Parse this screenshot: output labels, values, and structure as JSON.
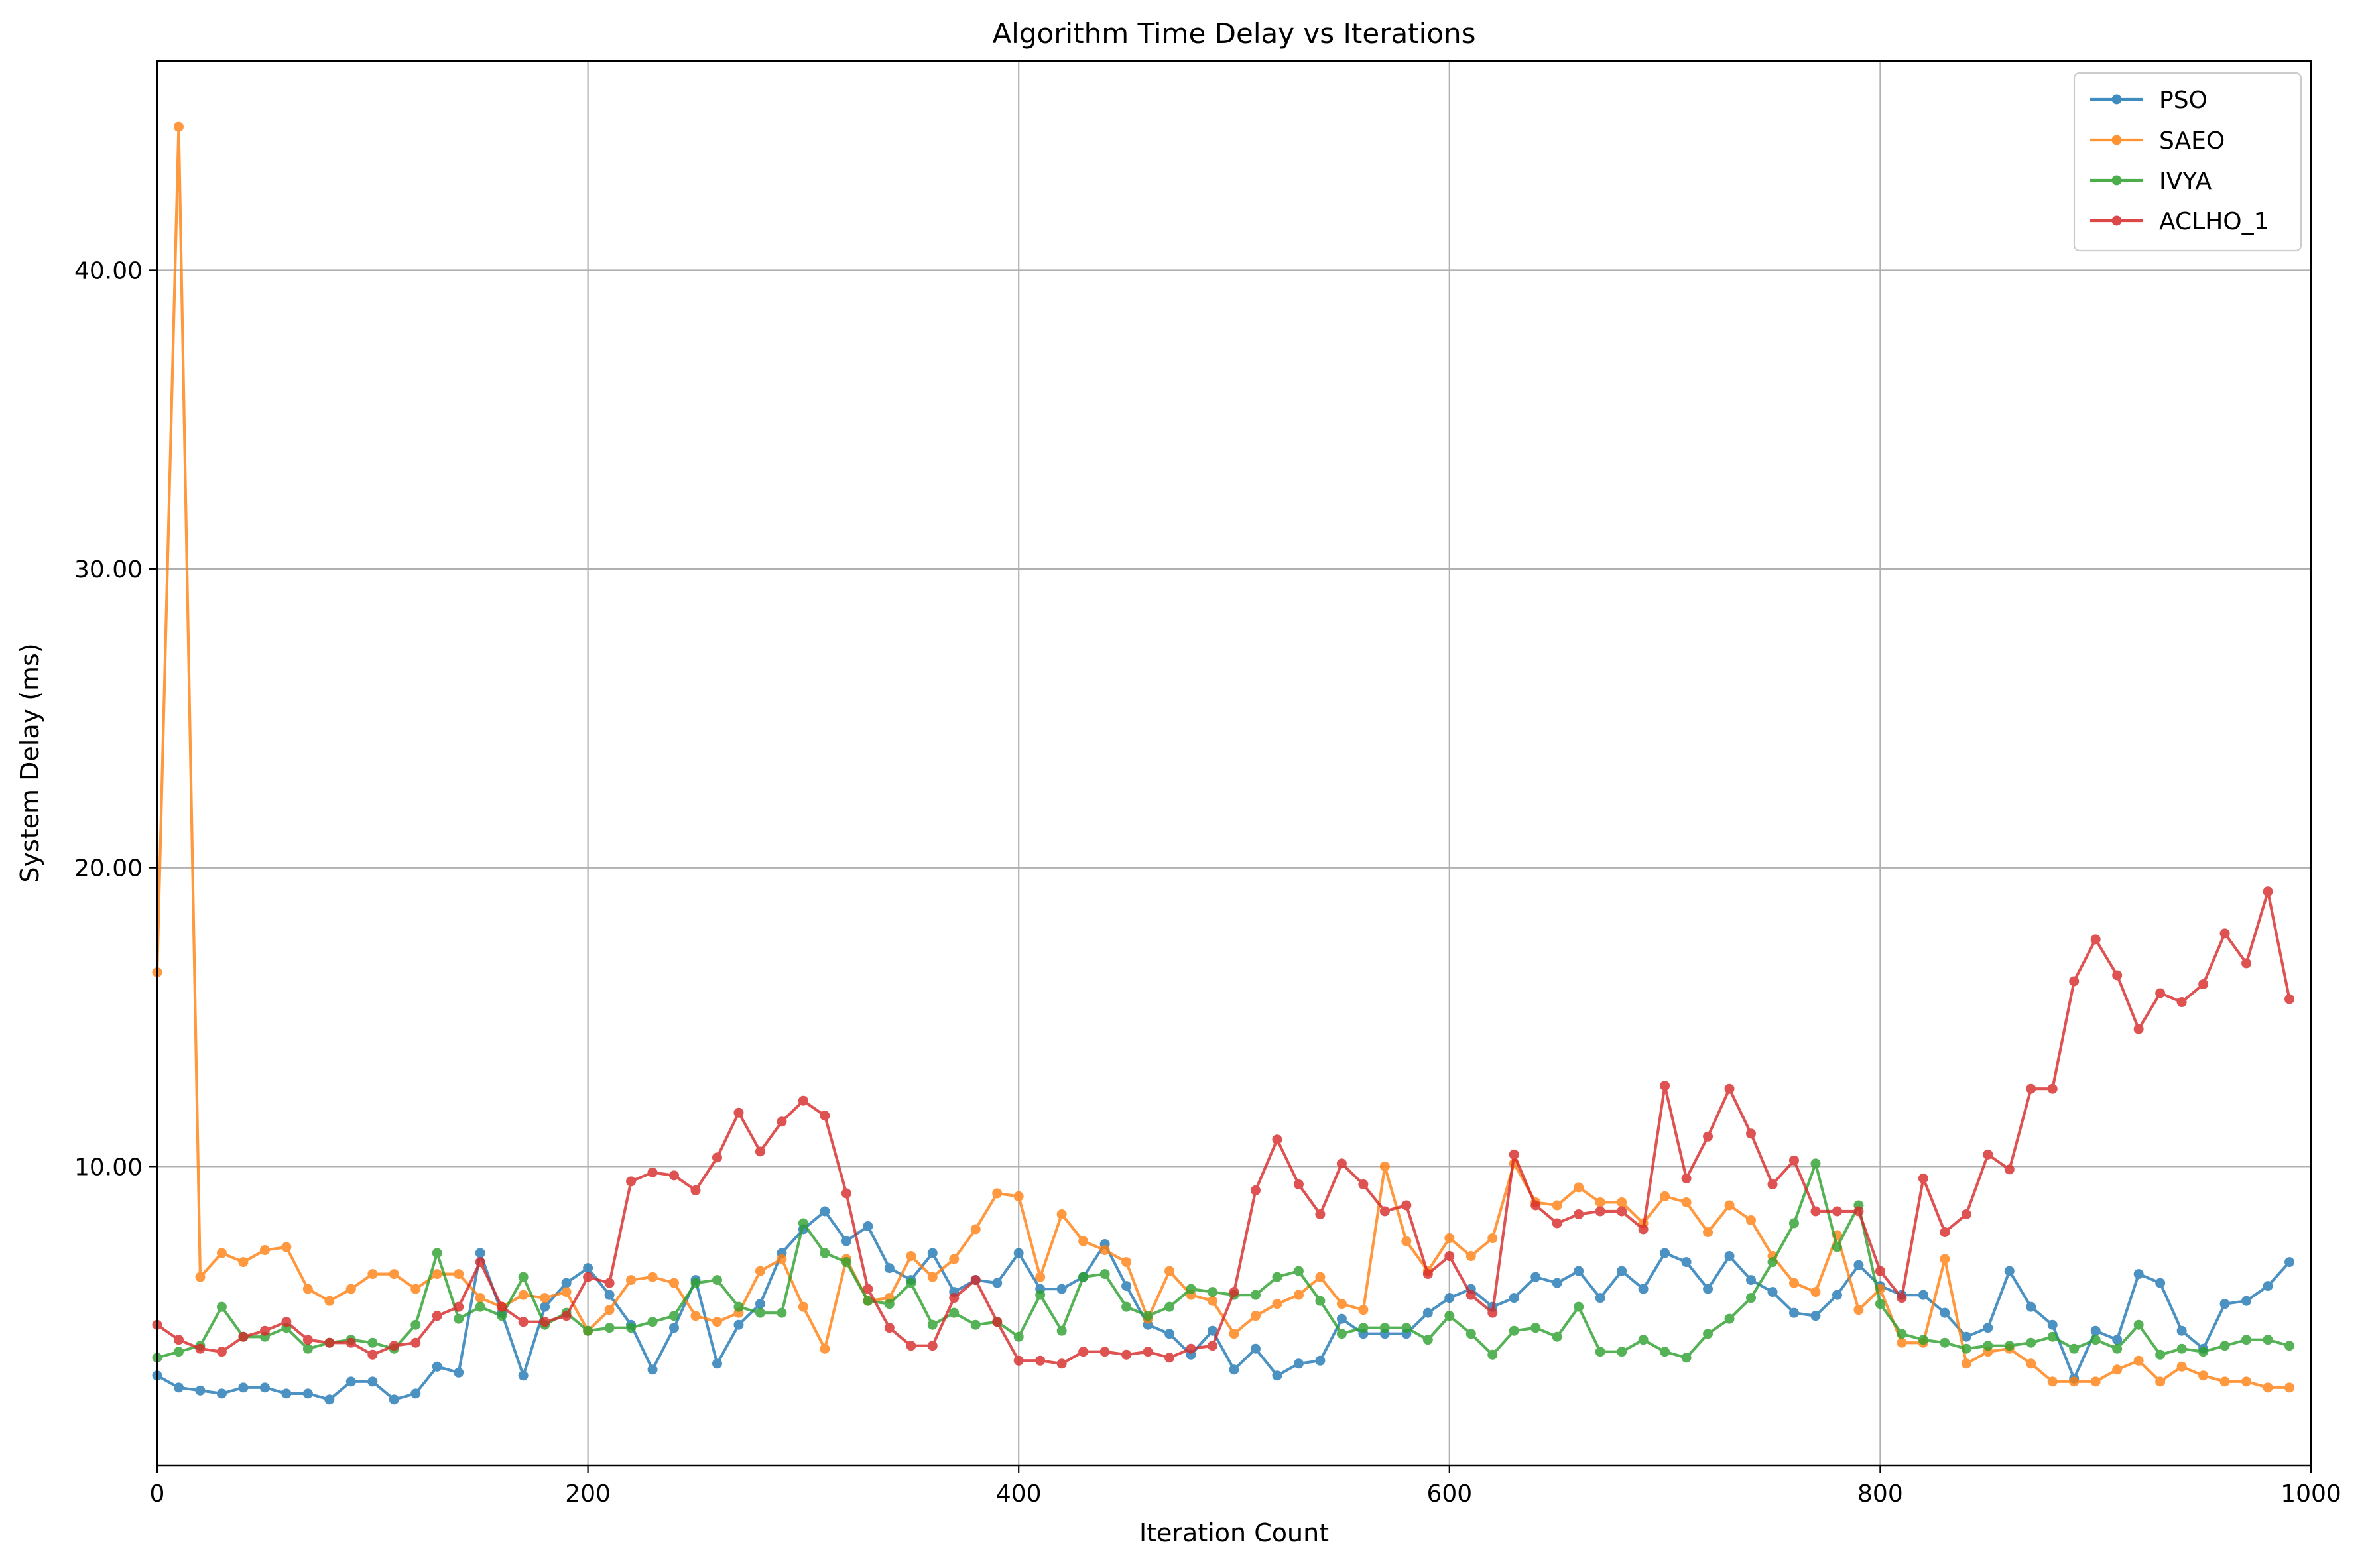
{
  "chart_data": {
    "type": "line",
    "title": "Algorithm Time Delay vs Iterations",
    "xlabel": "Iteration Count",
    "ylabel": "System Delay (ms)",
    "xlim": [
      0,
      1000
    ],
    "ylim": [
      0,
      47
    ],
    "xticks": [
      0,
      200,
      400,
      600,
      800,
      1000
    ],
    "xtick_labels": [
      "0",
      "200",
      "400",
      "600",
      "800",
      "1000"
    ],
    "yticks": [
      10,
      20,
      30,
      40
    ],
    "ytick_labels": [
      "10.00",
      "20.00",
      "30.00",
      "40.00"
    ],
    "grid": true,
    "legend_position": "top-right",
    "x": [
      0,
      10,
      20,
      30,
      40,
      50,
      60,
      70,
      80,
      90,
      100,
      110,
      120,
      130,
      140,
      150,
      160,
      170,
      180,
      190,
      200,
      210,
      220,
      230,
      240,
      250,
      260,
      270,
      280,
      290,
      300,
      310,
      320,
      330,
      340,
      350,
      360,
      370,
      380,
      390,
      400,
      410,
      420,
      430,
      440,
      450,
      460,
      470,
      480,
      490,
      500,
      510,
      520,
      530,
      540,
      550,
      560,
      570,
      580,
      590,
      600,
      610,
      620,
      630,
      640,
      650,
      660,
      670,
      680,
      690,
      700,
      710,
      720,
      730,
      740,
      750,
      760,
      770,
      780,
      790,
      800,
      810,
      820,
      830,
      840,
      850,
      860,
      870,
      880,
      890,
      900,
      910,
      920,
      930,
      940,
      950,
      960,
      970,
      980,
      990
    ],
    "series": [
      {
        "name": "PSO",
        "color": "#1f77b4",
        "values": [
          3.0,
          2.6,
          2.5,
          2.4,
          2.6,
          2.6,
          2.4,
          2.4,
          2.2,
          2.8,
          2.8,
          2.2,
          2.4,
          3.3,
          3.1,
          7.1,
          5.1,
          3.0,
          5.3,
          6.1,
          6.6,
          5.7,
          4.7,
          3.2,
          4.6,
          6.2,
          3.4,
          4.7,
          5.4,
          7.1,
          7.9,
          8.5,
          7.5,
          8.0,
          6.6,
          6.2,
          7.1,
          5.8,
          6.2,
          6.1,
          7.1,
          5.9,
          5.9,
          6.3,
          7.4,
          6.0,
          4.7,
          4.4,
          3.7,
          4.5,
          3.2,
          3.9,
          3.0,
          3.4,
          3.5,
          4.9,
          4.4,
          4.4,
          4.4,
          5.1,
          5.6,
          5.9,
          5.3,
          5.6,
          6.3,
          6.1,
          6.5,
          5.6,
          6.5,
          5.9,
          7.1,
          6.8,
          5.9,
          7.0,
          6.2,
          5.8,
          5.1,
          5.0,
          5.7,
          6.7,
          6.0,
          5.7,
          5.7,
          5.1,
          4.3,
          4.6,
          6.5,
          5.3,
          4.7,
          2.9,
          4.5,
          4.2,
          6.4,
          6.1,
          4.5,
          3.9,
          5.4,
          5.5,
          6.0,
          6.8
        ]
      },
      {
        "name": "SAEO",
        "color": "#ff7f0e",
        "values": [
          16.5,
          44.8,
          6.3,
          7.1,
          6.8,
          7.2,
          7.3,
          5.9,
          5.5,
          5.9,
          6.4,
          6.4,
          5.9,
          6.4,
          6.4,
          5.6,
          5.3,
          5.7,
          5.6,
          5.8,
          4.5,
          5.2,
          6.2,
          6.3,
          6.1,
          5.0,
          4.8,
          5.1,
          6.5,
          6.9,
          5.3,
          3.9,
          6.9,
          5.5,
          5.6,
          7.0,
          6.3,
          6.9,
          7.9,
          9.1,
          9.0,
          6.3,
          8.4,
          7.5,
          7.2,
          6.8,
          4.9,
          6.5,
          5.7,
          5.5,
          4.4,
          5.0,
          5.4,
          5.7,
          6.3,
          5.4,
          5.2,
          10.0,
          7.5,
          6.5,
          7.6,
          7.0,
          7.6,
          10.1,
          8.8,
          8.7,
          9.3,
          8.8,
          8.8,
          8.1,
          9.0,
          8.8,
          7.8,
          8.7,
          8.2,
          7.0,
          6.1,
          5.8,
          7.7,
          5.2,
          5.9,
          4.1,
          4.1,
          6.9,
          3.4,
          3.8,
          3.9,
          3.4,
          2.8,
          2.8,
          2.8,
          3.2,
          3.5,
          2.8,
          3.3,
          3.0,
          2.8,
          2.8,
          2.6,
          2.6
        ]
      },
      {
        "name": "IVYA",
        "color": "#2ca02c",
        "values": [
          3.6,
          3.8,
          4.0,
          5.3,
          4.3,
          4.3,
          4.6,
          3.9,
          4.1,
          4.2,
          4.1,
          3.9,
          4.7,
          7.1,
          4.9,
          5.3,
          5.0,
          6.3,
          4.7,
          5.1,
          4.5,
          4.6,
          4.6,
          4.8,
          5.0,
          6.1,
          6.2,
          5.3,
          5.1,
          5.1,
          8.1,
          7.1,
          6.8,
          5.5,
          5.4,
          6.1,
          4.7,
          5.1,
          4.7,
          4.8,
          4.3,
          5.7,
          4.5,
          6.3,
          6.4,
          5.3,
          5.0,
          5.3,
          5.9,
          5.8,
          5.7,
          5.7,
          6.3,
          6.5,
          5.5,
          4.4,
          4.6,
          4.6,
          4.6,
          4.2,
          5.0,
          4.4,
          3.7,
          4.5,
          4.6,
          4.3,
          5.3,
          3.8,
          3.8,
          4.2,
          3.8,
          3.6,
          4.4,
          4.9,
          5.6,
          6.8,
          8.1,
          10.1,
          7.3,
          8.7,
          5.4,
          4.4,
          4.2,
          4.1,
          3.9,
          4.0,
          4.0,
          4.1,
          4.3,
          3.9,
          4.2,
          3.9,
          4.7,
          3.7,
          3.9,
          3.8,
          4.0,
          4.2,
          4.2,
          4.0
        ]
      },
      {
        "name": "ACLHO_1",
        "color": "#d62728",
        "values": [
          4.7,
          4.2,
          3.9,
          3.8,
          4.3,
          4.5,
          4.8,
          4.2,
          4.1,
          4.1,
          3.7,
          4.0,
          4.1,
          5.0,
          5.3,
          6.8,
          5.3,
          4.8,
          4.8,
          5.0,
          6.3,
          6.1,
          9.5,
          9.8,
          9.7,
          9.2,
          10.3,
          11.8,
          10.5,
          11.5,
          12.2,
          11.7,
          9.1,
          5.9,
          4.6,
          4.0,
          4.0,
          5.6,
          6.2,
          4.8,
          3.5,
          3.5,
          3.4,
          3.8,
          3.8,
          3.7,
          3.8,
          3.6,
          3.9,
          4.0,
          5.8,
          9.2,
          10.9,
          9.4,
          8.4,
          10.1,
          9.4,
          8.5,
          8.7,
          6.4,
          7.0,
          5.7,
          5.1,
          10.4,
          8.7,
          8.1,
          8.4,
          8.5,
          8.5,
          7.9,
          12.7,
          9.6,
          11.0,
          12.6,
          11.1,
          9.4,
          10.2,
          8.5,
          8.5,
          8.5,
          6.5,
          5.6,
          9.6,
          7.8,
          8.4,
          10.4,
          9.9,
          12.6,
          12.6,
          16.2,
          17.6,
          16.4,
          14.6,
          15.8,
          15.5,
          16.1,
          17.8,
          16.8,
          19.2,
          15.6
        ]
      }
    ]
  }
}
